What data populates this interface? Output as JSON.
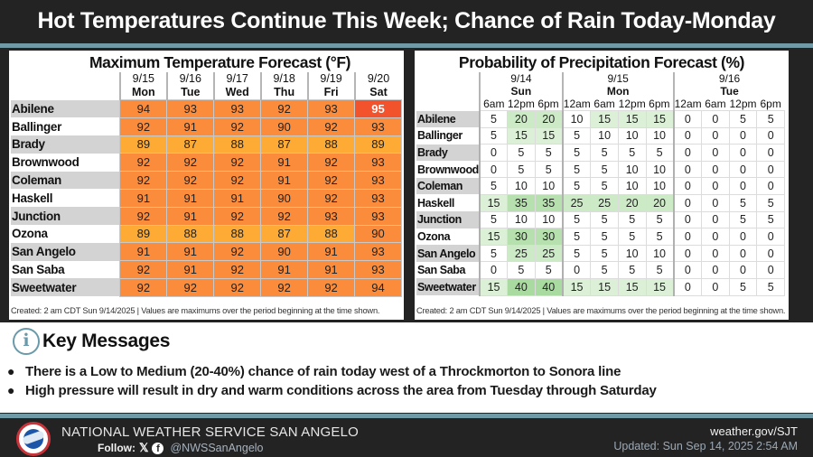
{
  "title": "Hot Temperatures Continue This Week; Chance of Rain Today-Monday",
  "temperature": {
    "title": "Maximum Temperature Forecast (°F)",
    "columns": [
      {
        "date": "9/15",
        "day": "Mon"
      },
      {
        "date": "9/16",
        "day": "Tue"
      },
      {
        "date": "9/17",
        "day": "Wed"
      },
      {
        "date": "9/18",
        "day": "Thu"
      },
      {
        "date": "9/19",
        "day": "Fri"
      },
      {
        "date": "9/20",
        "day": "Sat"
      }
    ],
    "rows": [
      {
        "name": "Abilene",
        "values": [
          "94",
          "93",
          "93",
          "92",
          "93",
          "95"
        ]
      },
      {
        "name": "Ballinger",
        "values": [
          "92",
          "91",
          "92",
          "90",
          "92",
          "93"
        ]
      },
      {
        "name": "Brady",
        "values": [
          "89",
          "87",
          "88",
          "87",
          "88",
          "89"
        ]
      },
      {
        "name": "Brownwood",
        "values": [
          "92",
          "92",
          "92",
          "91",
          "92",
          "93"
        ]
      },
      {
        "name": "Coleman",
        "values": [
          "92",
          "92",
          "92",
          "91",
          "92",
          "93"
        ]
      },
      {
        "name": "Haskell",
        "values": [
          "91",
          "91",
          "91",
          "90",
          "92",
          "93"
        ]
      },
      {
        "name": "Junction",
        "values": [
          "92",
          "91",
          "92",
          "92",
          "93",
          "93"
        ]
      },
      {
        "name": "Ozona",
        "values": [
          "89",
          "88",
          "88",
          "87",
          "88",
          "90"
        ]
      },
      {
        "name": "San Angelo",
        "values": [
          "91",
          "91",
          "92",
          "90",
          "91",
          "93"
        ]
      },
      {
        "name": "San Saba",
        "values": [
          "92",
          "91",
          "92",
          "91",
          "91",
          "93"
        ]
      },
      {
        "name": "Sweetwater",
        "values": [
          "92",
          "92",
          "92",
          "92",
          "92",
          "94"
        ]
      }
    ],
    "footnote": "Created: 2 am CDT Sun 9/14/2025  |  Values are maximums over the period beginning at the time shown.",
    "colors": {
      "t95": "#f2522c",
      "t90_94": "#fb8c3c",
      "t87_89": "#fdab34"
    }
  },
  "precipitation": {
    "title": "Probability of Precipitation Forecast (%)",
    "days": [
      {
        "date": "9/14",
        "day": "Sun",
        "times": [
          "6am",
          "12pm",
          "6pm"
        ]
      },
      {
        "date": "9/15",
        "day": "Mon",
        "times": [
          "12am",
          "6am",
          "12pm",
          "6pm"
        ]
      },
      {
        "date": "9/16",
        "day": "Tue",
        "times": [
          "12am",
          "6am",
          "12pm",
          "6pm"
        ]
      }
    ],
    "rows": [
      {
        "name": "Abilene",
        "values": [
          "5",
          "20",
          "20",
          "10",
          "15",
          "15",
          "15",
          "0",
          "0",
          "5",
          "5"
        ]
      },
      {
        "name": "Ballinger",
        "values": [
          "5",
          "15",
          "15",
          "5",
          "10",
          "10",
          "10",
          "0",
          "0",
          "0",
          "0"
        ]
      },
      {
        "name": "Brady",
        "values": [
          "0",
          "5",
          "5",
          "5",
          "5",
          "5",
          "5",
          "0",
          "0",
          "0",
          "0"
        ]
      },
      {
        "name": "Brownwood",
        "values": [
          "0",
          "5",
          "5",
          "5",
          "5",
          "10",
          "10",
          "0",
          "0",
          "0",
          "0"
        ]
      },
      {
        "name": "Coleman",
        "values": [
          "5",
          "10",
          "10",
          "5",
          "5",
          "10",
          "10",
          "0",
          "0",
          "0",
          "0"
        ]
      },
      {
        "name": "Haskell",
        "values": [
          "15",
          "35",
          "35",
          "25",
          "25",
          "20",
          "20",
          "0",
          "0",
          "5",
          "5"
        ]
      },
      {
        "name": "Junction",
        "values": [
          "5",
          "10",
          "10",
          "5",
          "5",
          "5",
          "5",
          "0",
          "0",
          "5",
          "5"
        ]
      },
      {
        "name": "Ozona",
        "values": [
          "15",
          "30",
          "30",
          "5",
          "5",
          "5",
          "5",
          "0",
          "0",
          "0",
          "0"
        ]
      },
      {
        "name": "San Angelo",
        "values": [
          "5",
          "25",
          "25",
          "5",
          "5",
          "10",
          "10",
          "0",
          "0",
          "0",
          "0"
        ]
      },
      {
        "name": "San Saba",
        "values": [
          "0",
          "5",
          "5",
          "0",
          "5",
          "5",
          "5",
          "0",
          "0",
          "0",
          "0"
        ]
      },
      {
        "name": "Sweetwater",
        "values": [
          "15",
          "40",
          "40",
          "15",
          "15",
          "15",
          "15",
          "0",
          "0",
          "5",
          "5"
        ]
      }
    ],
    "footnote": "Created: 2 am CDT Sun 9/14/2025  |  Values are maximums over the period beginning at the time shown."
  },
  "key_messages": {
    "title": "Key Messages",
    "icon": "info-icon",
    "items": [
      "There is a Low to Medium (20-40%) chance of rain today west of a Throckmorton to Sonora line",
      "High pressure will result in dry and warm conditions across the area from Tuesday through Saturday"
    ]
  },
  "footer": {
    "org": "NATIONAL WEATHER SERVICE SAN ANGELO",
    "follow_label": "Follow:",
    "x_icon": "𝕏",
    "fb_icon": "f",
    "handle": "@NWSSanAngelo",
    "site": "weather.gov/SJT",
    "updated": "Updated: Sun Sep 14, 2025 2:54 AM"
  }
}
